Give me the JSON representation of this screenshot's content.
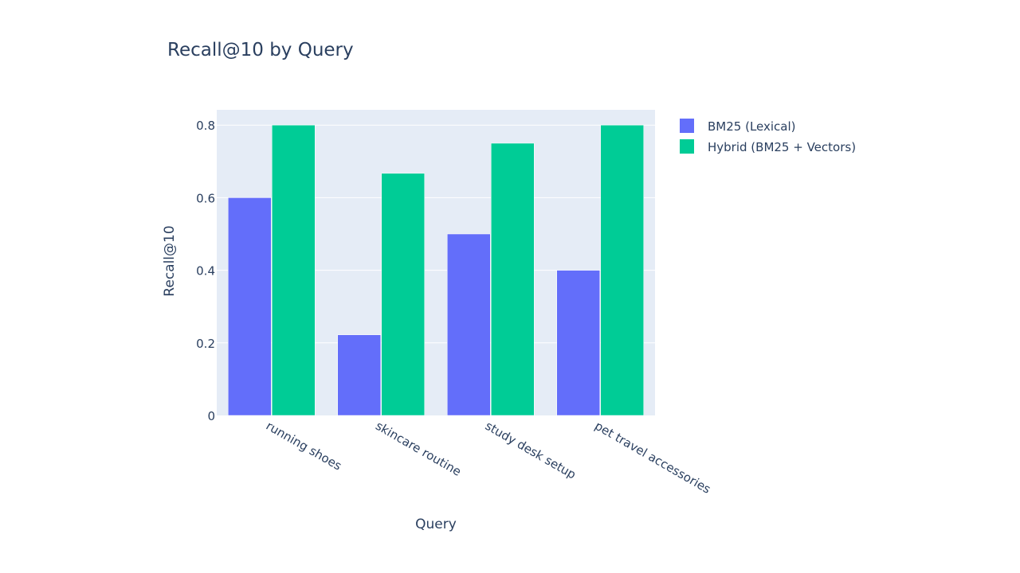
{
  "chart_data": {
    "type": "bar",
    "title": "Recall@10 by Query",
    "xlabel": "Query",
    "ylabel": "Recall@10",
    "categories": [
      "running shoes",
      "skincare routine",
      "study desk setup",
      "pet travel accessories"
    ],
    "series": [
      {
        "name": "BM25 (Lexical)",
        "values": [
          0.6,
          0.222,
          0.5,
          0.4
        ],
        "color": "#636efa"
      },
      {
        "name": "Hybrid (BM25 + Vectors)",
        "values": [
          0.8,
          0.667,
          0.75,
          0.8
        ],
        "color": "#00cc96"
      }
    ],
    "ylim": [
      0,
      0.8421
    ],
    "yticks": [
      0,
      0.2,
      0.4,
      0.6,
      0.8
    ],
    "ytick_labels": [
      "0",
      "0.2",
      "0.4",
      "0.6",
      "0.8"
    ],
    "grid": true,
    "legend_position": "top-right",
    "plot_background": "#e5ecf6"
  }
}
